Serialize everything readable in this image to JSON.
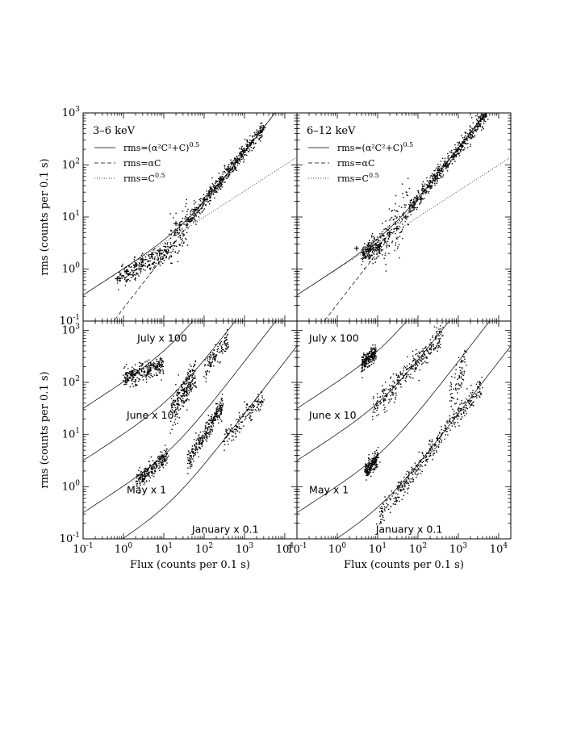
{
  "chart_data": [
    {
      "id": "top-left",
      "type": "scatter",
      "log_x": true,
      "log_y": true,
      "xlim": [
        0.1,
        20000
      ],
      "ylim": [
        0.1,
        1000
      ],
      "x_ticklabels": [],
      "y_ticklabels": [
        "10^-1",
        "10^0",
        "10^1",
        "10^2",
        "10^3"
      ],
      "ylabel": "rms (counts per 0.1 s)",
      "xlabel": "",
      "energy_label": "3–6 keV",
      "legend": [
        {
          "style": "solid",
          "label": "rms=(α²C²+C)^0.5"
        },
        {
          "style": "dashed",
          "label": "rms=αC"
        },
        {
          "style": "dotted",
          "label": "rms=C^0.5"
        }
      ],
      "curves": [
        {
          "style": "solid",
          "formula": "sqrt(a^2 C^2 + C)",
          "alpha": 0.175
        },
        {
          "style": "dashed",
          "formula": "a C",
          "alpha": 0.175
        },
        {
          "style": "dotted",
          "formula": "sqrt(C)"
        }
      ],
      "scatter_clusters": [
        {
          "x_range": [
            0.7,
            14
          ],
          "y_at": [
            0.6,
            2.3
          ],
          "scatter": 0.1,
          "count": 260
        },
        {
          "x_range": [
            14,
            40
          ],
          "y_at": [
            2.5,
            8
          ],
          "scatter": 0.2,
          "count": 110
        },
        {
          "x_range": [
            40,
            3000
          ],
          "y_at": [
            8,
            520
          ],
          "scatter": 0.08,
          "count": 460
        }
      ],
      "markers": [
        {
          "x": 0.7,
          "y": 0.65
        },
        {
          "x": 1.2,
          "y": 0.9
        },
        {
          "x": 2,
          "y": 1.2
        },
        {
          "x": 3,
          "y": 1.5
        },
        {
          "x": 5,
          "y": 1.9
        },
        {
          "x": 8,
          "y": 2.3
        },
        {
          "x": 20,
          "y": 7.5
        },
        {
          "x": 25,
          "y": 7
        },
        {
          "x": 40,
          "y": 9
        },
        {
          "x": 60,
          "y": 14
        },
        {
          "x": 100,
          "y": 22
        },
        {
          "x": 150,
          "y": 33
        },
        {
          "x": 250,
          "y": 55
        },
        {
          "x": 400,
          "y": 85
        },
        {
          "x": 600,
          "y": 120
        },
        {
          "x": 1000,
          "y": 190
        },
        {
          "x": 1500,
          "y": 270
        },
        {
          "x": 2500,
          "y": 450
        },
        {
          "x": 3000,
          "y": 520
        }
      ],
      "annotations": []
    },
    {
      "id": "top-right",
      "type": "scatter",
      "log_x": true,
      "log_y": true,
      "xlim": [
        0.1,
        20000
      ],
      "ylim": [
        0.1,
        1000
      ],
      "x_ticklabels": [],
      "y_ticklabels": [],
      "ylabel": "",
      "xlabel": "",
      "energy_label": "6–12 keV",
      "legend": [
        {
          "style": "solid",
          "label": "rms=(α²C²+C)^0.5"
        },
        {
          "style": "dashed",
          "label": "rms=αC"
        },
        {
          "style": "dotted",
          "label": "rms=C^0.5"
        }
      ],
      "curves": [
        {
          "style": "solid",
          "formula": "sqrt(a^2 C^2 + C)",
          "alpha": 0.21
        },
        {
          "style": "dashed",
          "formula": "a C",
          "alpha": 0.21
        },
        {
          "style": "dotted",
          "formula": "sqrt(C)"
        }
      ],
      "scatter_clusters": [
        {
          "x_range": [
            4,
            12
          ],
          "y_at": [
            1.9,
            2.8
          ],
          "scatter": 0.1,
          "count": 200
        },
        {
          "x_range": [
            12,
            60
          ],
          "y_at": [
            3,
            14
          ],
          "scatter": 0.25,
          "count": 130
        },
        {
          "x_range": [
            60,
            5000
          ],
          "y_at": [
            14,
            950
          ],
          "scatter": 0.08,
          "count": 480
        }
      ],
      "markers": [
        {
          "x": 3,
          "y": 2.5
        },
        {
          "x": 6,
          "y": 2.2
        },
        {
          "x": 10,
          "y": 2.6
        },
        {
          "x": 20,
          "y": 5
        },
        {
          "x": 30,
          "y": 6
        },
        {
          "x": 50,
          "y": 10
        },
        {
          "x": 80,
          "y": 15
        },
        {
          "x": 120,
          "y": 22
        },
        {
          "x": 200,
          "y": 38
        },
        {
          "x": 300,
          "y": 55
        },
        {
          "x": 500,
          "y": 95
        },
        {
          "x": 800,
          "y": 150
        },
        {
          "x": 1200,
          "y": 230
        },
        {
          "x": 2000,
          "y": 380
        },
        {
          "x": 3000,
          "y": 560
        },
        {
          "x": 4000,
          "y": 800
        }
      ],
      "annotations": []
    },
    {
      "id": "bottom-left",
      "type": "scatter",
      "log_x": true,
      "log_y": true,
      "xlim": [
        0.1,
        20000
      ],
      "ylim": [
        0.1,
        1500
      ],
      "x_ticklabels": [
        "10^-1",
        "10^0",
        "10^1",
        "10^2",
        "10^3",
        "10^4"
      ],
      "y_ticklabels": [
        "10^-1",
        "10^0",
        "10^1",
        "10^2",
        "10^3"
      ],
      "ylabel": "rms (counts per 0.1 s)",
      "xlabel": "Flux (counts per 0.1 s)",
      "energy_label": "",
      "legend": [],
      "curves": [
        {
          "style": "solid",
          "formula": "sqrt(a^2 C^2 + C) * s",
          "alpha": 0.25,
          "scale": 100
        },
        {
          "style": "solid",
          "formula": "sqrt(a^2 C^2 + C) * s",
          "alpha": 0.25,
          "scale": 10
        },
        {
          "style": "solid",
          "formula": "sqrt(a^2 C^2 + C) * s",
          "alpha": 0.25,
          "scale": 1
        },
        {
          "style": "solid",
          "formula": "sqrt(a^2 C^2 + C) * s",
          "alpha": 0.25,
          "scale": 0.1
        }
      ],
      "scatter_clusters": [
        {
          "x_range": [
            1,
            10
          ],
          "y_at": [
            120,
            220
          ],
          "scatter": 0.09,
          "count": 300
        },
        {
          "x_range": [
            15,
            60
          ],
          "y_at": [
            25,
            150
          ],
          "scatter": 0.15,
          "count": 260
        },
        {
          "x_range": [
            100,
            400
          ],
          "y_at": [
            180,
            650
          ],
          "scatter": 0.1,
          "count": 120
        },
        {
          "x_range": [
            2,
            12
          ],
          "y_at": [
            1.2,
            4
          ],
          "scatter": 0.08,
          "count": 260
        },
        {
          "x_range": [
            40,
            300
          ],
          "y_at": [
            3,
            40
          ],
          "scatter": 0.1,
          "count": 300
        },
        {
          "x_range": [
            300,
            3000
          ],
          "y_at": [
            8,
            50
          ],
          "scatter": 0.1,
          "count": 160
        }
      ],
      "markers": [],
      "annotations": [
        {
          "text": "July x 100",
          "x": 2.2,
          "y": 600
        },
        {
          "text": "June x 10",
          "x": 1.2,
          "y": 20
        },
        {
          "text": "May x 1",
          "x": 1.2,
          "y": 0.75
        },
        {
          "text": "January x 0.1",
          "x": 50,
          "y": 0.13
        }
      ]
    },
    {
      "id": "bottom-right",
      "type": "scatter",
      "log_x": true,
      "log_y": true,
      "xlim": [
        0.1,
        20000
      ],
      "ylim": [
        0.1,
        1500
      ],
      "x_ticklabels": [
        "10^-1",
        "10^0",
        "10^1",
        "10^2",
        "10^3",
        "10^4"
      ],
      "y_ticklabels": [],
      "ylabel": "",
      "xlabel": "Flux (counts per 0.1 s)",
      "energy_label": "",
      "legend": [],
      "curves": [
        {
          "style": "solid",
          "formula": "sqrt(a^2 C^2 + C) * s",
          "alpha": 0.25,
          "scale": 100
        },
        {
          "style": "solid",
          "formula": "sqrt(a^2 C^2 + C) * s",
          "alpha": 0.25,
          "scale": 10
        },
        {
          "style": "solid",
          "formula": "sqrt(a^2 C^2 + C) * s",
          "alpha": 0.25,
          "scale": 1
        },
        {
          "style": "solid",
          "formula": "sqrt(a^2 C^2 + C) * s",
          "alpha": 0.25,
          "scale": 0.1
        }
      ],
      "scatter_clusters": [
        {
          "x_range": [
            4,
            9
          ],
          "y_at": [
            220,
            380
          ],
          "scatter": 0.08,
          "count": 220
        },
        {
          "x_range": [
            8,
            400
          ],
          "y_at": [
            30,
            800
          ],
          "scatter": 0.12,
          "count": 320
        },
        {
          "x_range": [
            600,
            1500
          ],
          "y_at": [
            40,
            300
          ],
          "scatter": 0.2,
          "count": 80
        },
        {
          "x_range": [
            5,
            10
          ],
          "y_at": [
            2,
            3.5
          ],
          "scatter": 0.08,
          "count": 200
        },
        {
          "x_range": [
            10,
            4000
          ],
          "y_at": [
            0.25,
            90
          ],
          "scatter": 0.1,
          "count": 420
        }
      ],
      "markers": [],
      "annotations": [
        {
          "text": "July x 100",
          "x": 0.2,
          "y": 600
        },
        {
          "text": "June x 10",
          "x": 0.2,
          "y": 20
        },
        {
          "text": "May x 1",
          "x": 0.2,
          "y": 0.75
        },
        {
          "text": "January x 0.1",
          "x": 9,
          "y": 0.13
        }
      ]
    }
  ]
}
